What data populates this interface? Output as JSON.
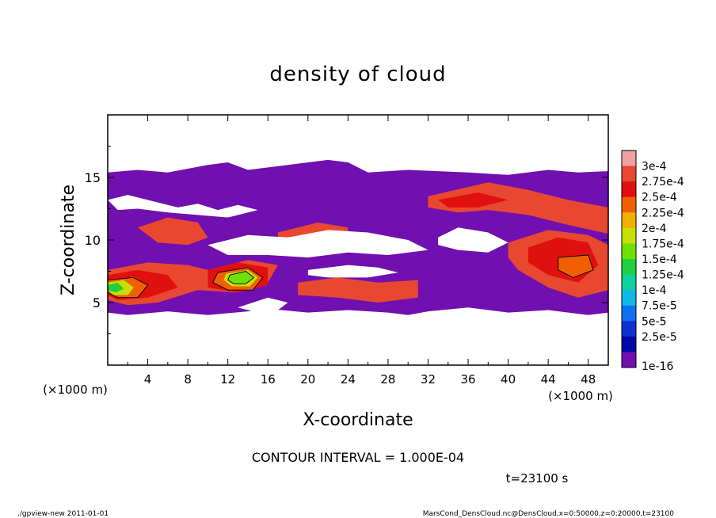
{
  "chart_data": {
    "type": "heatmap",
    "title": "density of cloud",
    "xlabel": "X-coordinate",
    "ylabel": "Z-coordinate",
    "x_unit_left": "(×1000 m)",
    "x_unit_right": "(×1000 m)",
    "xlim": [
      0,
      50
    ],
    "ylim": [
      0,
      20
    ],
    "x_ticks": [
      4,
      8,
      12,
      16,
      20,
      24,
      28,
      32,
      36,
      40,
      44,
      48
    ],
    "y_ticks": [
      5,
      10,
      15
    ],
    "colorbar": {
      "labels": [
        "3e-4",
        "2.75e-4",
        "2.5e-4",
        "2.25e-4",
        "2e-4",
        "1.75e-4",
        "1.5e-4",
        "1.25e-4",
        "1e-4",
        "7.5e-5",
        "5e-5",
        "2.5e-5",
        "1e-16"
      ],
      "colors": [
        "#f0a0a0",
        "#e84830",
        "#e01010",
        "#f06000",
        "#f0b000",
        "#c8e000",
        "#70e000",
        "#20d040",
        "#10d0a0",
        "#10b8e8",
        "#1070f0",
        "#1030d0",
        "#0008a8",
        "#7010b0"
      ]
    },
    "field_regions": [
      {
        "level": 0,
        "points": [
          [
            0,
            4.2
          ],
          [
            2,
            4.0
          ],
          [
            6,
            4.3
          ],
          [
            10,
            4.0
          ],
          [
            14,
            4.3
          ],
          [
            16,
            4.5
          ],
          [
            20,
            4.2
          ],
          [
            24,
            4.4
          ],
          [
            28,
            4.2
          ],
          [
            30,
            4.0
          ],
          [
            32,
            4.3
          ],
          [
            36,
            4.6
          ],
          [
            40,
            4.2
          ],
          [
            44,
            4.4
          ],
          [
            48,
            4.0
          ],
          [
            50,
            4.2
          ],
          [
            50,
            15.5
          ],
          [
            47,
            15.4
          ],
          [
            44,
            15.6
          ],
          [
            40,
            15.2
          ],
          [
            36,
            15.4
          ],
          [
            33,
            15.5
          ],
          [
            30,
            15.6
          ],
          [
            26,
            15.4
          ],
          [
            24,
            16.2
          ],
          [
            22,
            16.4
          ],
          [
            18,
            16.0
          ],
          [
            14,
            15.6
          ],
          [
            12,
            16.2
          ],
          [
            10,
            16.0
          ],
          [
            6,
            15.4
          ],
          [
            3,
            15.6
          ],
          [
            0,
            15.4
          ]
        ]
      },
      {
        "level": 12,
        "points": [
          [
            32,
            13.5
          ],
          [
            38,
            14.6
          ],
          [
            42,
            14.0
          ],
          [
            46,
            13.2
          ],
          [
            50,
            12.6
          ],
          [
            50,
            10.5
          ],
          [
            46,
            11.2
          ],
          [
            42,
            12.0
          ],
          [
            38,
            12.4
          ],
          [
            35,
            12.2
          ],
          [
            32,
            12.6
          ]
        ]
      },
      {
        "level": 12,
        "points": [
          [
            40,
            9.8
          ],
          [
            44,
            10.8
          ],
          [
            48,
            10.4
          ],
          [
            50,
            9.6
          ],
          [
            50,
            6.0
          ],
          [
            47,
            5.4
          ],
          [
            44,
            6.2
          ],
          [
            41,
            7.6
          ],
          [
            40,
            8.6
          ]
        ]
      },
      {
        "level": 12,
        "points": [
          [
            0,
            7.6
          ],
          [
            4,
            8.2
          ],
          [
            8,
            8.0
          ],
          [
            10,
            7.6
          ],
          [
            14,
            8.4
          ],
          [
            17,
            8.0
          ],
          [
            16,
            6.6
          ],
          [
            13,
            5.8
          ],
          [
            9,
            6.0
          ],
          [
            5,
            5.0
          ],
          [
            2,
            4.8
          ],
          [
            0,
            5.2
          ]
        ]
      },
      {
        "level": 12,
        "points": [
          [
            3,
            11.0
          ],
          [
            6,
            11.8
          ],
          [
            9,
            11.4
          ],
          [
            10,
            10.2
          ],
          [
            8,
            9.6
          ],
          [
            5,
            9.8
          ]
        ]
      },
      {
        "level": 12,
        "points": [
          [
            17,
            10.6
          ],
          [
            21,
            11.4
          ],
          [
            24,
            11.0
          ],
          [
            24,
            9.8
          ],
          [
            20,
            9.4
          ],
          [
            17,
            9.8
          ]
        ]
      },
      {
        "level": 12,
        "points": [
          [
            19,
            6.6
          ],
          [
            23,
            7.0
          ],
          [
            27,
            6.6
          ],
          [
            31,
            6.8
          ],
          [
            31,
            5.4
          ],
          [
            27,
            5.0
          ],
          [
            23,
            5.4
          ],
          [
            19,
            5.6
          ]
        ]
      },
      {
        "level": 11,
        "points": [
          [
            42,
            9.4
          ],
          [
            45,
            10.2
          ],
          [
            48,
            9.8
          ],
          [
            49,
            8.0
          ],
          [
            47,
            6.6
          ],
          [
            44,
            7.2
          ],
          [
            42,
            8.2
          ]
        ]
      },
      {
        "level": 11,
        "points": [
          [
            33,
            13.2
          ],
          [
            37,
            13.8
          ],
          [
            40,
            13.2
          ],
          [
            37,
            12.6
          ],
          [
            34,
            12.6
          ]
        ]
      },
      {
        "level": 11,
        "points": [
          [
            0,
            7.2
          ],
          [
            3,
            7.6
          ],
          [
            6,
            7.2
          ],
          [
            7,
            6.2
          ],
          [
            4,
            5.4
          ],
          [
            1,
            5.2
          ],
          [
            0,
            5.6
          ]
        ]
      },
      {
        "level": 11,
        "points": [
          [
            10,
            7.6
          ],
          [
            13,
            8.2
          ],
          [
            16,
            7.8
          ],
          [
            16,
            6.4
          ],
          [
            13,
            5.8
          ],
          [
            10,
            6.2
          ]
        ]
      },
      {
        "level": 10,
        "points": [
          [
            0,
            6.8
          ],
          [
            2.5,
            7.0
          ],
          [
            4,
            6.4
          ],
          [
            3,
            5.4
          ],
          [
            1,
            5.4
          ],
          [
            0,
            5.8
          ]
        ]
      },
      {
        "level": 10,
        "points": [
          [
            11,
            7.4
          ],
          [
            14,
            7.8
          ],
          [
            15.5,
            7.0
          ],
          [
            14.5,
            6.0
          ],
          [
            12,
            6.0
          ],
          [
            10.5,
            6.6
          ]
        ]
      },
      {
        "level": 10,
        "points": [
          [
            45,
            8.6
          ],
          [
            48,
            8.8
          ],
          [
            48.5,
            7.6
          ],
          [
            46.5,
            7.0
          ],
          [
            45,
            7.6
          ]
        ]
      },
      {
        "level": 8,
        "points": [
          [
            0,
            6.6
          ],
          [
            1.6,
            6.8
          ],
          [
            2.6,
            6.2
          ],
          [
            2,
            5.6
          ],
          [
            0.6,
            5.6
          ],
          [
            0,
            6.0
          ]
        ]
      },
      {
        "level": 8,
        "points": [
          [
            11.8,
            7.3
          ],
          [
            14,
            7.6
          ],
          [
            15,
            7.0
          ],
          [
            14.2,
            6.3
          ],
          [
            12.4,
            6.3
          ],
          [
            11.6,
            6.8
          ]
        ]
      },
      {
        "level": 7,
        "points": [
          [
            12.2,
            7.2
          ],
          [
            13.8,
            7.5
          ],
          [
            14.6,
            7.0
          ],
          [
            13.8,
            6.5
          ],
          [
            12.6,
            6.5
          ],
          [
            12.0,
            6.8
          ]
        ]
      },
      {
        "level": 6,
        "points": [
          [
            0,
            6.4
          ],
          [
            1,
            6.6
          ],
          [
            1.6,
            6.1
          ],
          [
            0.8,
            5.8
          ],
          [
            0,
            6.0
          ]
        ]
      },
      {
        "level": 0,
        "points": [
          [
            0,
            13.2
          ],
          [
            2,
            13.6
          ],
          [
            5,
            13.0
          ],
          [
            7,
            12.6
          ],
          [
            9,
            12.9
          ],
          [
            11,
            12.4
          ],
          [
            13,
            12.8
          ],
          [
            15,
            12.4
          ],
          [
            12,
            11.8
          ],
          [
            9,
            12.0
          ],
          [
            6,
            12.2
          ],
          [
            3,
            12.5
          ],
          [
            1,
            12.4
          ]
        ]
      },
      {
        "level": 0,
        "points": [
          [
            10,
            9.6
          ],
          [
            14,
            10.4
          ],
          [
            18,
            10.2
          ],
          [
            22,
            10.8
          ],
          [
            26,
            10.6
          ],
          [
            30,
            10.0
          ],
          [
            32,
            9.2
          ],
          [
            28,
            8.8
          ],
          [
            24,
            9.0
          ],
          [
            20,
            8.6
          ],
          [
            16,
            8.8
          ],
          [
            12,
            8.8
          ]
        ]
      },
      {
        "level": 0,
        "points": [
          [
            20,
            7.6
          ],
          [
            24,
            8.0
          ],
          [
            27,
            7.8
          ],
          [
            29,
            7.4
          ],
          [
            26,
            7.0
          ],
          [
            22,
            7.0
          ],
          [
            20,
            7.2
          ]
        ]
      },
      {
        "level": 0,
        "points": [
          [
            33,
            10.2
          ],
          [
            35,
            11.0
          ],
          [
            38,
            10.6
          ],
          [
            40,
            9.8
          ],
          [
            38,
            9.0
          ],
          [
            35,
            9.2
          ],
          [
            33,
            9.6
          ]
        ]
      },
      {
        "level": 0,
        "points": [
          [
            13,
            4.6
          ],
          [
            16,
            5.4
          ],
          [
            18,
            5.0
          ],
          [
            17,
            4.4
          ],
          [
            15,
            4.2
          ]
        ]
      }
    ],
    "contour_lines": [
      {
        "points": [
          [
            0,
            6.8
          ],
          [
            2.5,
            7.0
          ],
          [
            4,
            6.4
          ],
          [
            3,
            5.4
          ],
          [
            1,
            5.4
          ],
          [
            0,
            5.8
          ]
        ]
      },
      {
        "points": [
          [
            11,
            7.4
          ],
          [
            14,
            7.8
          ],
          [
            15.5,
            7.0
          ],
          [
            14.5,
            6.0
          ],
          [
            12,
            6.0
          ],
          [
            10.5,
            6.6
          ]
        ]
      },
      {
        "points": [
          [
            12.2,
            7.2
          ],
          [
            13.8,
            7.5
          ],
          [
            14.6,
            7.0
          ],
          [
            13.8,
            6.5
          ],
          [
            12.6,
            6.5
          ],
          [
            12.0,
            6.8
          ]
        ]
      },
      {
        "points": [
          [
            45,
            8.6
          ],
          [
            48,
            8.8
          ],
          [
            48.5,
            7.6
          ],
          [
            46.5,
            7.0
          ],
          [
            45,
            7.6
          ]
        ]
      }
    ],
    "contour_interval_text": "CONTOUR INTERVAL = 1.000E-04",
    "time_text": "t=23100 s"
  },
  "footer": {
    "left": "./gpview-new  2011-01-01",
    "right": "MarsCond_DensCloud.nc@DensCloud,x=0:50000,z=0:20000,t=23100"
  }
}
